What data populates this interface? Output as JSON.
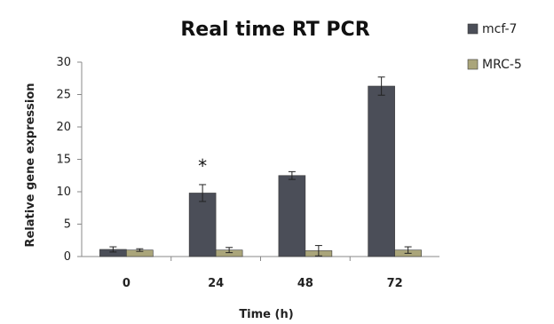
{
  "chart_data": {
    "type": "bar",
    "title": "Real time RT PCR",
    "xlabel": "Time (h)",
    "ylabel": "Relative gene expression",
    "categories": [
      "0",
      "24",
      "48",
      "72"
    ],
    "ylim": [
      0,
      30
    ],
    "yticks": [
      0,
      5,
      10,
      15,
      20,
      25,
      30
    ],
    "grid": false,
    "legend_position": "top-right",
    "series": [
      {
        "name": "mcf-7",
        "color": "#4b4e58",
        "values": [
          1.1,
          9.8,
          12.5,
          26.3
        ],
        "errors": [
          0.4,
          1.3,
          0.6,
          1.4
        ]
      },
      {
        "name": "MRC-5",
        "color": "#aaa57a",
        "values": [
          1.0,
          1.0,
          0.9,
          1.0
        ],
        "errors": [
          0.2,
          0.4,
          0.8,
          0.5
        ]
      }
    ],
    "annotations": [
      {
        "category": "24",
        "text": "*"
      }
    ]
  }
}
